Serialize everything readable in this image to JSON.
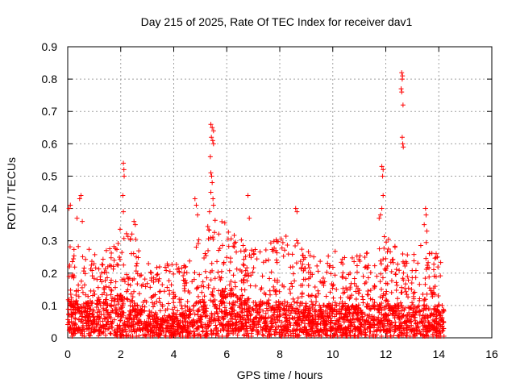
{
  "chart_data": {
    "type": "scatter",
    "title": "Day 215 of 2025, Rate Of TEC Index for receiver dav1",
    "xlabel": "GPS time / hours",
    "ylabel": "ROTI / TECUs",
    "xlim": [
      0,
      16
    ],
    "ylim": [
      0,
      0.9
    ],
    "x_ticks": [
      0,
      2,
      4,
      6,
      8,
      10,
      12,
      14,
      16
    ],
    "y_ticks": [
      0,
      0.1,
      0.2,
      0.3,
      0.4,
      0.5,
      0.6,
      0.7,
      0.8,
      0.9
    ],
    "x_tick_labels": [
      "0",
      "2",
      "4",
      "6",
      "8",
      "10",
      "12",
      "14",
      "16"
    ],
    "y_tick_labels": [
      "0",
      "0.1",
      "0.2",
      "0.3",
      "0.4",
      "0.5",
      "0.6",
      "0.7",
      "0.8",
      "0.9"
    ],
    "grid": true,
    "marker": "+",
    "color": "#ff0000",
    "data_range_x": [
      0,
      14.2
    ],
    "envelope": {
      "x": [
        0,
        0.5,
        1,
        1.5,
        2,
        2.5,
        3,
        3.5,
        4,
        4.5,
        5,
        5.5,
        6,
        6.5,
        7,
        7.5,
        8,
        8.5,
        9,
        9.5,
        10,
        10.5,
        11,
        11.5,
        12,
        12.5,
        13,
        13.5,
        14,
        14.2
      ],
      "upper": [
        0.3,
        0.27,
        0.28,
        0.25,
        0.32,
        0.3,
        0.22,
        0.2,
        0.22,
        0.2,
        0.3,
        0.35,
        0.34,
        0.3,
        0.27,
        0.28,
        0.3,
        0.3,
        0.26,
        0.22,
        0.26,
        0.24,
        0.24,
        0.25,
        0.3,
        0.25,
        0.24,
        0.3,
        0.22,
        0.2
      ],
      "base": [
        0.07,
        0.06,
        0.07,
        0.07,
        0.08,
        0.07,
        0.05,
        0.04,
        0.04,
        0.05,
        0.07,
        0.09,
        0.09,
        0.08,
        0.07,
        0.07,
        0.07,
        0.07,
        0.06,
        0.06,
        0.06,
        0.06,
        0.06,
        0.06,
        0.07,
        0.06,
        0.06,
        0.06,
        0.05,
        0.05
      ]
    },
    "outliers": [
      {
        "x": 0.05,
        "y": 0.4
      },
      {
        "x": 0.1,
        "y": 0.41
      },
      {
        "x": 0.45,
        "y": 0.43
      },
      {
        "x": 0.5,
        "y": 0.44
      },
      {
        "x": 0.35,
        "y": 0.37
      },
      {
        "x": 0.55,
        "y": 0.36
      },
      {
        "x": 2.1,
        "y": 0.54
      },
      {
        "x": 2.12,
        "y": 0.52
      },
      {
        "x": 2.13,
        "y": 0.5
      },
      {
        "x": 2.08,
        "y": 0.44
      },
      {
        "x": 2.1,
        "y": 0.39
      },
      {
        "x": 2.5,
        "y": 0.36
      },
      {
        "x": 2.55,
        "y": 0.35
      },
      {
        "x": 4.8,
        "y": 0.43
      },
      {
        "x": 4.85,
        "y": 0.41
      },
      {
        "x": 4.9,
        "y": 0.38
      },
      {
        "x": 5.4,
        "y": 0.66
      },
      {
        "x": 5.45,
        "y": 0.65
      },
      {
        "x": 5.5,
        "y": 0.64
      },
      {
        "x": 5.42,
        "y": 0.62
      },
      {
        "x": 5.47,
        "y": 0.61
      },
      {
        "x": 5.5,
        "y": 0.6
      },
      {
        "x": 5.38,
        "y": 0.56
      },
      {
        "x": 5.4,
        "y": 0.51
      },
      {
        "x": 5.43,
        "y": 0.5
      },
      {
        "x": 5.45,
        "y": 0.48
      },
      {
        "x": 5.4,
        "y": 0.45
      },
      {
        "x": 5.48,
        "y": 0.43
      },
      {
        "x": 5.5,
        "y": 0.41
      },
      {
        "x": 5.35,
        "y": 0.39
      },
      {
        "x": 6.8,
        "y": 0.44
      },
      {
        "x": 6.85,
        "y": 0.37
      },
      {
        "x": 8.6,
        "y": 0.4
      },
      {
        "x": 8.65,
        "y": 0.39
      },
      {
        "x": 11.85,
        "y": 0.53
      },
      {
        "x": 11.9,
        "y": 0.52
      },
      {
        "x": 11.88,
        "y": 0.5
      },
      {
        "x": 11.9,
        "y": 0.44
      },
      {
        "x": 11.85,
        "y": 0.4
      },
      {
        "x": 11.8,
        "y": 0.38
      },
      {
        "x": 11.75,
        "y": 0.37
      },
      {
        "x": 12.6,
        "y": 0.82
      },
      {
        "x": 12.63,
        "y": 0.81
      },
      {
        "x": 12.62,
        "y": 0.8
      },
      {
        "x": 12.58,
        "y": 0.77
      },
      {
        "x": 12.6,
        "y": 0.76
      },
      {
        "x": 12.65,
        "y": 0.72
      },
      {
        "x": 12.62,
        "y": 0.62
      },
      {
        "x": 12.64,
        "y": 0.6
      },
      {
        "x": 12.66,
        "y": 0.59
      },
      {
        "x": 13.5,
        "y": 0.4
      },
      {
        "x": 13.52,
        "y": 0.38
      },
      {
        "x": 13.45,
        "y": 0.35
      },
      {
        "x": 13.55,
        "y": 0.33
      },
      {
        "x": 13.9,
        "y": 0.26
      },
      {
        "x": 13.95,
        "y": 0.25
      }
    ]
  }
}
